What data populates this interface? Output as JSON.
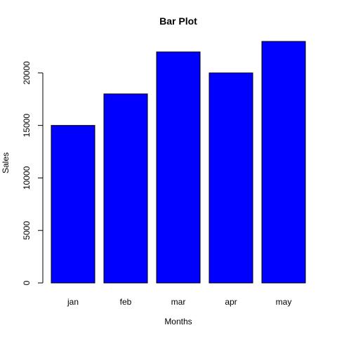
{
  "chart_data": {
    "type": "bar",
    "title": "Bar Plot",
    "xlabel": "Months",
    "ylabel": "Sales",
    "categories": [
      "jan",
      "feb",
      "mar",
      "apr",
      "may"
    ],
    "values": [
      15000,
      18000,
      22000,
      20000,
      23000
    ],
    "ylim": [
      0,
      23000
    ],
    "yticks": [
      0,
      5000,
      10000,
      15000,
      20000
    ],
    "ytick_labels": [
      "0",
      "5000",
      "10000",
      "15000",
      "20000"
    ],
    "bar_color": "#0000ff",
    "bar_border_color": "#000000",
    "grid": false,
    "legend": "none"
  }
}
